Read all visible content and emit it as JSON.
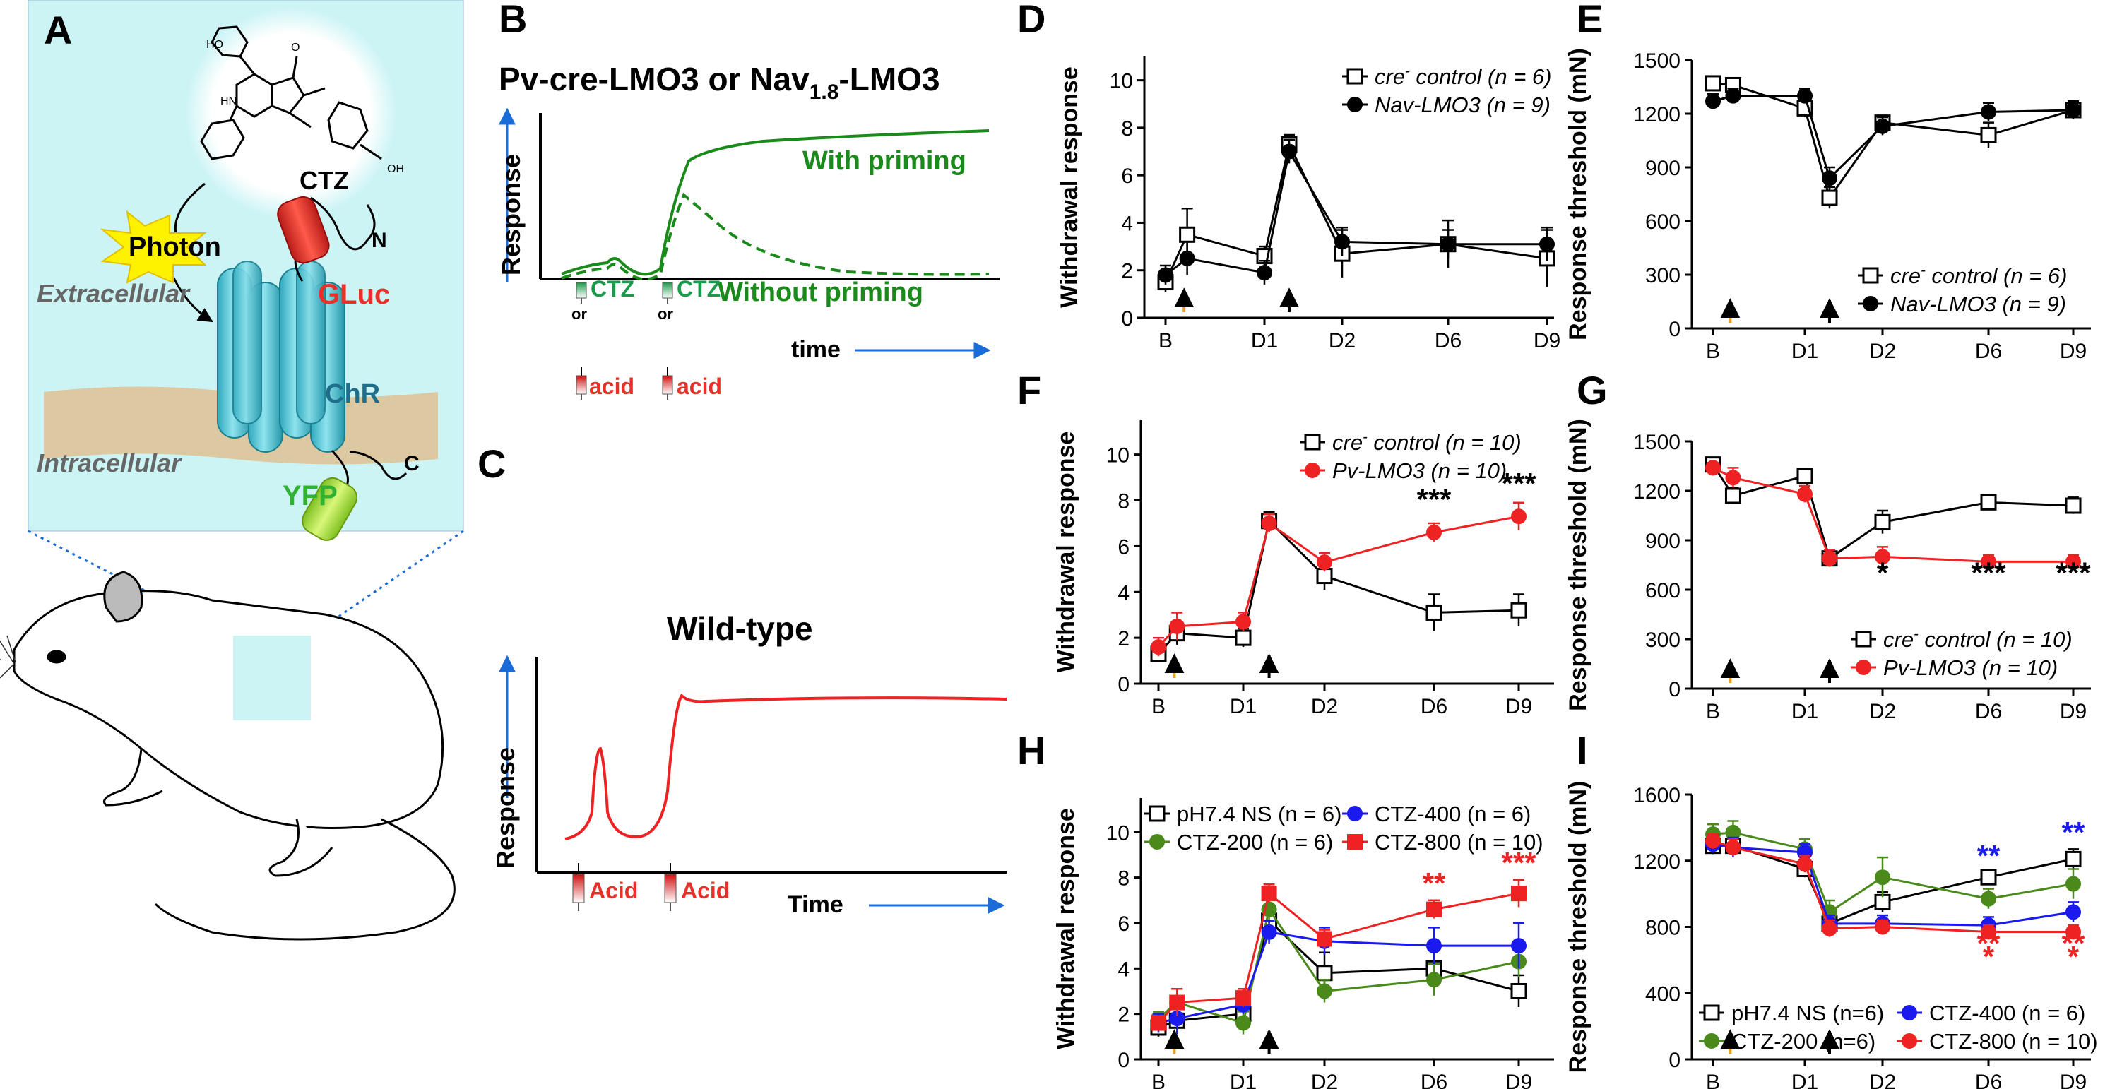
{
  "panel_letters": {
    "a": "A",
    "b": "B",
    "c": "C",
    "d": "D",
    "e": "E",
    "f": "F",
    "g": "G",
    "h": "H",
    "i": "I"
  },
  "panel_a": {
    "ctz": "CTZ",
    "photon": "Photon",
    "gluc": "GLuc",
    "n_term": "N",
    "c_term": "C",
    "chr": "ChR",
    "yfp": "YFP",
    "extracellular": "Extracellular",
    "intracellular": "Intracellular",
    "oh_top": "HO",
    "oh_right": "OH",
    "nh": "HN",
    "o": "O",
    "colors": {
      "box": "#ccf4f5",
      "membrane": "#dcc8a1",
      "gluc": "#e8302a",
      "yfp": "#a6dc38",
      "photon": "#fff200",
      "cylinder": "#4fc4d6"
    }
  },
  "panel_b": {
    "title_main": "Pv-cre-LMO3 or Nav",
    "title_sub": "1.8",
    "title_end": "-LMO3",
    "ylabel": "Response",
    "xlabel": "time",
    "with": "With priming",
    "without": "Without priming",
    "ctz": "CTZ",
    "or": "or",
    "acid": "acid",
    "color": "#1a8a1a"
  },
  "panel_c": {
    "title": "Wild-type",
    "ylabel": "Response",
    "xlabel": "Time",
    "acid": "Acid",
    "color": "#ee2222"
  },
  "chart_data": [
    {
      "panel": "D",
      "type": "line",
      "ylabel": "Withdrawal response",
      "xticks": [
        "B",
        "D1",
        "D2",
        "D6",
        "D9"
      ],
      "ylim": [
        0,
        11
      ],
      "yticks": [
        0,
        2,
        4,
        6,
        8,
        10
      ],
      "legend": [
        {
          "label": "cre",
          "sup": "-",
          "rest": " control (n = 6)",
          "marker": "open-square"
        },
        {
          "label": "Nav-LMO3 (n = 9)",
          "sup": "",
          "rest": "",
          "marker": "filled-circle"
        }
      ],
      "series": [
        {
          "name": "cre- control (n = 6)",
          "marker": "open-square",
          "color": "#000000",
          "x": [
            0,
            0.35,
            1.6,
            1.95,
            2.7,
            4.0,
            5.0
          ],
          "y": [
            1.5,
            3.5,
            2.6,
            7.3,
            2.7,
            3.1,
            2.5
          ],
          "err": [
            0.4,
            1.1,
            0.4,
            0.4,
            1.0,
            1.0,
            1.2
          ]
        },
        {
          "name": "Nav-LMO3 (n = 9)",
          "marker": "filled-circle",
          "color": "#000000",
          "x": [
            0,
            0.35,
            1.6,
            1.95,
            2.7,
            4.0,
            5.0
          ],
          "y": [
            1.8,
            2.5,
            1.9,
            7.0,
            3.2,
            3.1,
            3.1
          ],
          "err": [
            0.4,
            0.7,
            0.5,
            0.5,
            0.6,
            0.6,
            0.7
          ]
        }
      ]
    },
    {
      "panel": "E",
      "type": "line",
      "ylabel": "Response threshold (mN)",
      "xticks": [
        "B",
        "D1",
        "D2",
        "D6",
        "D9"
      ],
      "ylim": [
        0,
        1500
      ],
      "yticks": [
        0,
        300,
        600,
        900,
        1200,
        1500
      ],
      "legend": [
        {
          "label": "cre",
          "sup": "-",
          "rest": " control (n = 6)",
          "marker": "open-square"
        },
        {
          "label": "Nav-LMO3 (n = 9)",
          "sup": "",
          "rest": "",
          "marker": "filled-circle"
        }
      ],
      "series": [
        {
          "name": "cre- control (n = 6)",
          "marker": "open-square",
          "color": "#000000",
          "x": [
            0,
            0.35,
            1.6,
            1.95,
            2.7,
            4.0,
            5.0
          ],
          "y": [
            1370,
            1360,
            1230,
            730,
            1150,
            1080,
            1220
          ],
          "err": [
            30,
            40,
            50,
            60,
            40,
            70,
            50
          ]
        },
        {
          "name": "Nav-LMO3 (n = 9)",
          "marker": "filled-circle",
          "color": "#000000",
          "x": [
            0,
            0.35,
            1.6,
            1.95,
            2.7,
            4.0,
            5.0
          ],
          "y": [
            1270,
            1300,
            1300,
            840,
            1130,
            1210,
            1220
          ],
          "err": [
            40,
            40,
            40,
            60,
            50,
            50,
            40
          ]
        }
      ]
    },
    {
      "panel": "F",
      "type": "line",
      "ylabel": "Withdrawal response",
      "xticks": [
        "B",
        "D1",
        "D2",
        "D6",
        "D9"
      ],
      "ylim": [
        0,
        11.5
      ],
      "yticks": [
        0,
        2,
        4,
        6,
        8,
        10
      ],
      "legend": [
        {
          "label": "cre",
          "sup": "-",
          "rest": " control (n = 10)",
          "marker": "open-square"
        },
        {
          "label": "Pv-LMO3 (n = 10)",
          "sup": "",
          "rest": "",
          "marker": "red-circle"
        }
      ],
      "annotations": [
        {
          "text": "***",
          "x": 4.0,
          "y": 7.6,
          "color": "#000000"
        },
        {
          "text": "***",
          "x": 5.0,
          "y": 8.3,
          "color": "#000000"
        }
      ],
      "series": [
        {
          "name": "cre- control (n = 10)",
          "marker": "open-square",
          "color": "#000000",
          "x": [
            0,
            0.35,
            1.6,
            1.95,
            2.7,
            4.0,
            5.0
          ],
          "y": [
            1.3,
            2.2,
            2.0,
            7.1,
            4.7,
            3.1,
            3.2
          ],
          "err": [
            0.3,
            0.5,
            0.4,
            0.4,
            0.6,
            0.8,
            0.7
          ]
        },
        {
          "name": "Pv-LMO3 (n = 10)",
          "marker": "red-circle",
          "color": "#ee2222",
          "x": [
            0,
            0.35,
            1.6,
            1.95,
            2.7,
            4.0,
            5.0
          ],
          "y": [
            1.6,
            2.5,
            2.7,
            7.0,
            5.3,
            6.6,
            7.3
          ],
          "err": [
            0.4,
            0.6,
            0.4,
            0.4,
            0.4,
            0.4,
            0.6
          ]
        }
      ]
    },
    {
      "panel": "G",
      "type": "line",
      "ylabel": "Response threshold (mN)",
      "xticks": [
        "B",
        "D1",
        "D2",
        "D6",
        "D9"
      ],
      "ylim": [
        0,
        1500
      ],
      "yticks": [
        0,
        300,
        600,
        900,
        1200,
        1500
      ],
      "legend": [
        {
          "label": "cre",
          "sup": "-",
          "rest": " control (n = 10)",
          "marker": "open-square"
        },
        {
          "label": "Pv-LMO3 (n = 10)",
          "sup": "",
          "rest": "",
          "marker": "red-circle"
        }
      ],
      "annotations": [
        {
          "text": "*",
          "x": 2.7,
          "y": 640,
          "color": "#000000"
        },
        {
          "text": "***",
          "x": 4.0,
          "y": 640,
          "color": "#000000"
        },
        {
          "text": "***",
          "x": 5.0,
          "y": 640,
          "color": "#000000"
        }
      ],
      "series": [
        {
          "name": "cre- control (n = 10)",
          "marker": "open-square",
          "color": "#000000",
          "x": [
            0,
            0.35,
            1.6,
            1.95,
            2.7,
            4.0,
            5.0
          ],
          "y": [
            1360,
            1170,
            1290,
            790,
            1010,
            1130,
            1110
          ],
          "err": [
            30,
            50,
            30,
            50,
            70,
            30,
            50
          ]
        },
        {
          "name": "Pv-LMO3 (n = 10)",
          "marker": "red-circle",
          "color": "#ee2222",
          "x": [
            0,
            0.35,
            1.6,
            1.95,
            2.7,
            4.0,
            5.0
          ],
          "y": [
            1340,
            1280,
            1180,
            790,
            800,
            770,
            770
          ],
          "err": [
            30,
            60,
            50,
            50,
            60,
            40,
            40
          ]
        }
      ]
    },
    {
      "panel": "H",
      "type": "line",
      "ylabel": "Withdrawal response",
      "xticks": [
        "B",
        "D1",
        "D2",
        "D6",
        "D9"
      ],
      "ylim": [
        0,
        11.5
      ],
      "yticks": [
        0,
        2,
        4,
        6,
        8,
        10
      ],
      "legend": [
        {
          "label": "pH7.4 NS (n = 6)",
          "marker": "open-square",
          "color": "#000000"
        },
        {
          "label": "CTZ-400 (n = 6)",
          "marker": "filled-circle",
          "color": "#1a1aee"
        },
        {
          "label": "CTZ-200 (n = 6)",
          "marker": "filled-circle",
          "color": "#4a8a1a"
        },
        {
          "label": "CTZ-800 (n = 10)",
          "marker": "filled-square",
          "color": "#ee2222"
        }
      ],
      "annotations": [
        {
          "text": "**",
          "x": 4.0,
          "y": 7.3,
          "color": "#ee2222"
        },
        {
          "text": "***",
          "x": 5.0,
          "y": 8.2,
          "color": "#ee2222"
        }
      ],
      "series": [
        {
          "name": "pH7.4 NS (n = 6)",
          "marker": "open-square",
          "color": "#000000",
          "x": [
            0,
            0.35,
            1.6,
            1.95,
            2.7,
            4.0,
            5.0
          ],
          "y": [
            1.4,
            1.7,
            2.0,
            6.1,
            3.8,
            4.0,
            3.0
          ],
          "err": [
            0.4,
            0.6,
            0.5,
            0.6,
            0.9,
            0.8,
            0.7
          ]
        },
        {
          "name": "CTZ-200 (n = 6)",
          "marker": "filled-circle",
          "color": "#4a8a1a",
          "x": [
            0,
            0.35,
            1.6,
            1.95,
            2.7,
            4.0,
            5.0
          ],
          "y": [
            1.8,
            2.5,
            1.6,
            6.6,
            3.0,
            3.5,
            4.3
          ],
          "err": [
            0.3,
            0.6,
            0.5,
            0.6,
            0.5,
            0.7,
            0.7
          ]
        },
        {
          "name": "CTZ-400 (n = 6)",
          "marker": "filled-circle",
          "color": "#1a1aee",
          "x": [
            0,
            0.35,
            1.6,
            1.95,
            2.7,
            4.0,
            5.0
          ],
          "y": [
            1.6,
            1.8,
            2.4,
            5.6,
            5.2,
            5.0,
            5.0
          ],
          "err": [
            0.4,
            0.7,
            0.4,
            0.5,
            0.6,
            0.8,
            1.0
          ]
        },
        {
          "name": "CTZ-800 (n = 10)",
          "marker": "filled-square",
          "color": "#ee2222",
          "x": [
            0,
            0.35,
            1.6,
            1.95,
            2.7,
            4.0,
            5.0
          ],
          "y": [
            1.6,
            2.5,
            2.7,
            7.3,
            5.3,
            6.6,
            7.3
          ],
          "err": [
            0.3,
            0.6,
            0.4,
            0.4,
            0.4,
            0.4,
            0.6
          ]
        }
      ]
    },
    {
      "panel": "I",
      "type": "line",
      "ylabel": "Response threshold (mN)",
      "xticks": [
        "B",
        "D1",
        "D2",
        "D6",
        "D9"
      ],
      "ylim": [
        0,
        1600
      ],
      "yticks": [
        0,
        400,
        800,
        1200,
        1600
      ],
      "legend": [
        {
          "label": "pH7.4 NS (n=6)",
          "marker": "open-square",
          "color": "#000000"
        },
        {
          "label": "CTZ-400 (n = 6)",
          "marker": "filled-circle",
          "color": "#1a1aee"
        },
        {
          "label": "CTZ-200 (n=6)",
          "marker": "filled-circle",
          "color": "#4a8a1a"
        },
        {
          "label": "CTZ-800 (n = 10)",
          "marker": "filled-circle",
          "color": "#ee2222"
        }
      ],
      "annotations": [
        {
          "text": "**",
          "x": 4.0,
          "y": 1170,
          "color": "#1a1aee"
        },
        {
          "text": "**",
          "x": 5.0,
          "y": 1310,
          "color": "#1a1aee"
        },
        {
          "text": "**",
          "x": 4.0,
          "y": 640,
          "color": "#ee2222"
        },
        {
          "text": "*",
          "x": 4.0,
          "y": 560,
          "color": "#ee2222"
        },
        {
          "text": "**",
          "x": 5.0,
          "y": 640,
          "color": "#ee2222"
        },
        {
          "text": "*",
          "x": 5.0,
          "y": 560,
          "color": "#ee2222"
        }
      ],
      "series": [
        {
          "name": "pH7.4 NS (n=6)",
          "marker": "open-square",
          "color": "#000000",
          "x": [
            0,
            0.35,
            1.6,
            1.95,
            2.7,
            4.0,
            5.0
          ],
          "y": [
            1290,
            1290,
            1150,
            820,
            950,
            1100,
            1210
          ],
          "err": [
            50,
            50,
            50,
            50,
            60,
            40,
            60
          ]
        },
        {
          "name": "CTZ-200 (n=6)",
          "marker": "filled-circle",
          "color": "#4a8a1a",
          "x": [
            0,
            0.35,
            1.6,
            1.95,
            2.7,
            4.0,
            5.0
          ],
          "y": [
            1360,
            1370,
            1270,
            890,
            1100,
            970,
            1060
          ],
          "err": [
            60,
            70,
            60,
            70,
            120,
            60,
            90
          ]
        },
        {
          "name": "CTZ-400 (n = 6)",
          "marker": "filled-circle",
          "color": "#1a1aee",
          "x": [
            0,
            0.35,
            1.6,
            1.95,
            2.7,
            4.0,
            5.0
          ],
          "y": [
            1300,
            1280,
            1250,
            820,
            820,
            810,
            890
          ],
          "err": [
            50,
            60,
            50,
            50,
            50,
            50,
            60
          ]
        },
        {
          "name": "CTZ-800 (n = 10)",
          "marker": "filled-circle",
          "color": "#ee2222",
          "x": [
            0,
            0.35,
            1.6,
            1.95,
            2.7,
            4.0,
            5.0
          ],
          "y": [
            1320,
            1280,
            1180,
            790,
            800,
            770,
            770
          ],
          "err": [
            40,
            50,
            50,
            50,
            40,
            40,
            40
          ]
        }
      ]
    }
  ]
}
